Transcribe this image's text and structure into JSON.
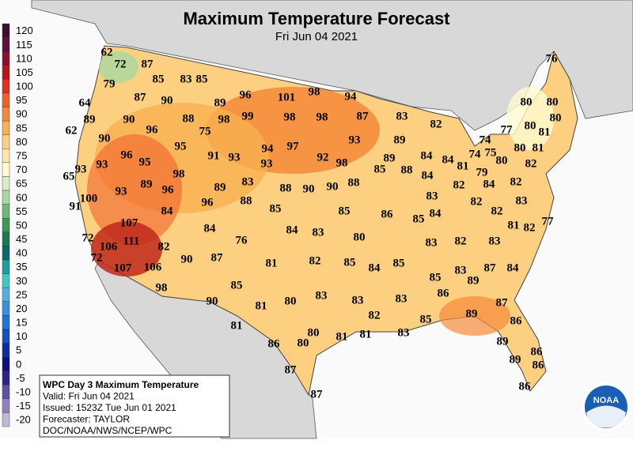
{
  "title": "Maximum Temperature Forecast",
  "subtitle": "Fri Jun 04 2021",
  "legend": {
    "values": [
      120,
      115,
      110,
      105,
      100,
      95,
      90,
      85,
      80,
      75,
      70,
      65,
      60,
      55,
      50,
      45,
      40,
      35,
      30,
      25,
      20,
      15,
      10,
      5,
      0,
      -5,
      -10,
      -15,
      -20
    ],
    "colors": [
      "#3d0f2e",
      "#5a1040",
      "#8b0e2e",
      "#b8161a",
      "#e0301e",
      "#f0602a",
      "#f58a3a",
      "#f9b050",
      "#fcd080",
      "#fde8a8",
      "#fffbd0",
      "#d8edc0",
      "#a8d8a0",
      "#70b878",
      "#3a9a52",
      "#1a7a50",
      "#0a6a6a",
      "#16a0a0",
      "#40c8c8",
      "#50b0e0",
      "#3890e0",
      "#2070e0",
      "#1050c0",
      "#0a30a0",
      "#0a1080",
      "#30208a",
      "#6050a8",
      "#9080c0",
      "#c0b8d8"
    ]
  },
  "stations": [
    62,
    72,
    87,
    85,
    83,
    85,
    76,
    79,
    64,
    87,
    90,
    89,
    96,
    101,
    98,
    94,
    80,
    80,
    89,
    90,
    96,
    88,
    98,
    99,
    98,
    98,
    87,
    83,
    82,
    77,
    80,
    81,
    80,
    74,
    62,
    90,
    75,
    95,
    94,
    97,
    93,
    89,
    84,
    84,
    81,
    74,
    75,
    80,
    81,
    93,
    96,
    95,
    93,
    98,
    91,
    93,
    93,
    92,
    98,
    85,
    89,
    88,
    79,
    80,
    82,
    65,
    93,
    89,
    96,
    89,
    83,
    88,
    90,
    90,
    88,
    84,
    83,
    82,
    84,
    82,
    83,
    100,
    91,
    84,
    96,
    88,
    85,
    85,
    86,
    85,
    84,
    82,
    82,
    77,
    81,
    82,
    107,
    72,
    111,
    106,
    84,
    76,
    84,
    83,
    80,
    83,
    82,
    83,
    72,
    82,
    107,
    106,
    90,
    87,
    81,
    82,
    85,
    84,
    85,
    87,
    84,
    83,
    89,
    85,
    98,
    85,
    80,
    83,
    81,
    90,
    83,
    83,
    86,
    87,
    81,
    82,
    85,
    89,
    86,
    86,
    80,
    80,
    81,
    81,
    83,
    89,
    86,
    89,
    86,
    87,
    87,
    86
  ],
  "info": [
    "WPC Day 3 Maximum Temperature",
    "Valid: Fri Jun 04 2021",
    "Issued: 1523Z Tue Jun 01 2021",
    "Forecaster: TAYLOR",
    "DOC/NOAA/NWS/NCEP/WPC"
  ],
  "logo": "NOAA"
}
